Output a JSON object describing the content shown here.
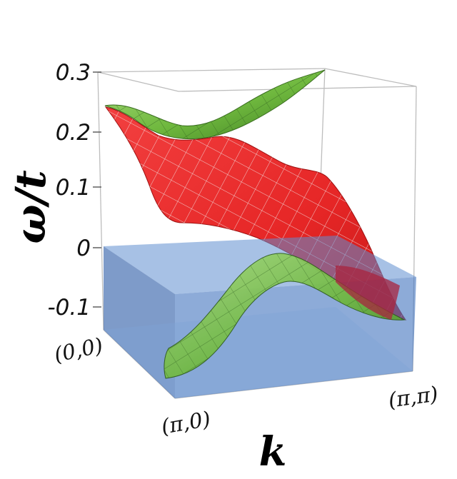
{
  "chart_data": {
    "type": "surface",
    "ylabel": "ω/t",
    "xlabel": "k",
    "ylim": [
      -0.15,
      0.3
    ],
    "y_ticks": [
      "0.3",
      "0.2",
      "0.1",
      "0",
      "-0.1"
    ],
    "k_ticks": [
      "(0,0)",
      "(π,0)",
      "(π,π)"
    ],
    "grid": false,
    "colors": {
      "upper_band": "#ea2b2b",
      "lower_band": "#7cc34a",
      "shaded_region": "#3f74c2",
      "mesh": "#e8e8e8"
    }
  }
}
